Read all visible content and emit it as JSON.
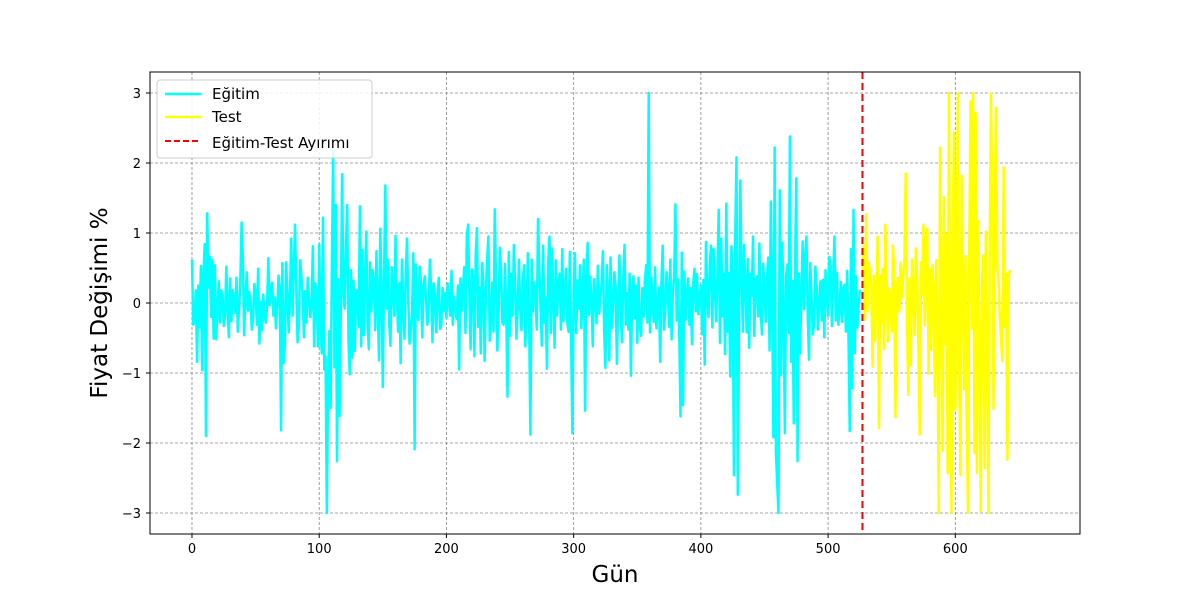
{
  "chart_data": {
    "type": "line",
    "xlabel": "Gün",
    "ylabel": "Fiyat Değişimi %",
    "xlim": [
      -33,
      698
    ],
    "ylim": [
      -3.3,
      3.3
    ],
    "xticks": [
      0,
      100,
      200,
      300,
      400,
      500,
      600
    ],
    "yticks": [
      -3,
      -2,
      -1,
      0,
      1,
      2,
      3
    ],
    "grid": true,
    "legend_position": "top-left",
    "split_day": 527,
    "series": [
      {
        "name": "Eğitim",
        "color": "#00ffff",
        "x_start": 0,
        "values": [
          0.62,
          -0.31,
          -0.27,
          0.18,
          -0.84,
          0.25,
          -0.34,
          0.53,
          -0.96,
          0.41,
          0.84,
          -1.9,
          1.28,
          0.22,
          0.66,
          -0.2,
          0.62,
          -0.51,
          0.54,
          -0.52,
          -0.14,
          0.31,
          -0.28,
          0.18,
          0.12,
          -0.33,
          -0.17,
          0.52,
          -0.09,
          -0.49,
          0.35,
          -0.26,
          0.18,
          0.08,
          -0.14,
          0.36,
          -0.41,
          -0.09,
          0.31,
          1.15,
          0.62,
          -0.46,
          0.05,
          0.44,
          -0.11,
          0.16,
          0.04,
          -0.38,
          -0.24,
          0.27,
          0.15,
          -0.31,
          0.49,
          -0.58,
          0.02,
          -0.39,
          0.12,
          -0.14,
          -0.28,
          -0.07,
          0.64,
          -0.03,
          0.21,
          0.29,
          -0.18,
          0.08,
          -0.36,
          -0.06,
          0.39,
          0.22,
          -1.82,
          0.57,
          -0.86,
          -0.61,
          0.58,
          0.15,
          -0.42,
          0.07,
          0.92,
          -0.18,
          0.47,
          1.12,
          0.21,
          -0.56,
          -0.33,
          0.61,
          0.39,
          0.12,
          -0.49,
          0.17,
          -0.28,
          0.36,
          0.06,
          -0.2,
          -0.05,
          0.81,
          -0.62,
          0.28,
          0.08,
          -0.62,
          0.84,
          -0.28,
          -0.72,
          1.22,
          -0.95,
          -0.76,
          -3.0,
          -1.08,
          -0.4,
          -1.5,
          0.65,
          2.18,
          -0.92,
          1.4,
          -2.26,
          0.34,
          -1.62,
          -0.12,
          1.84,
          0.15,
          -0.08,
          0.82,
          1.4,
          -0.53,
          -1.02,
          0.47,
          -0.78,
          0.32,
          -0.69,
          0.18,
          0.09,
          -0.34,
          1.38,
          -0.62,
          0.76,
          -0.46,
          0.34,
          1.02,
          -0.26,
          -0.66,
          0.58,
          -0.12,
          0.47,
          0.3,
          -0.39,
          0.74,
          -0.05,
          -0.82,
          1.06,
          0.21,
          -1.2,
          0.42,
          1.68,
          -0.08,
          0.62,
          -0.29,
          -0.61,
          0.51,
          0.22,
          -0.18,
          0.96,
          0.13,
          -0.41,
          0.29,
          -0.86,
          0.62,
          -0.03,
          -0.51,
          0.38,
          0.92,
          0.07,
          -0.58,
          -0.38,
          -0.13,
          0.71,
          -2.09,
          0.55,
          -0.16,
          -0.24,
          0.52,
          0.29,
          -0.49,
          0.24,
          0.38,
          0.05,
          -0.31,
          -0.14,
          0.62,
          0.19,
          -0.56,
          0.28,
          0.07,
          -0.42,
          0.13,
          0.36,
          -0.37,
          -0.32,
          0.21,
          -0.11,
          0.14,
          -0.22,
          0.28,
          0.03,
          -0.18,
          0.46,
          -0.31,
          0.09,
          -0.06,
          -0.23,
          0.25,
          -0.95,
          0.35,
          -0.11,
          0.21,
          0.51,
          -0.43,
          0.94,
          1.12,
          0.18,
          -0.66,
          0.48,
          0.37,
          -0.76,
          0.68,
          1.07,
          -0.34,
          0.22,
          -0.72,
          0.57,
          0.31,
          -0.83,
          0.16,
          0.62,
          0.95,
          -0.54,
          -0.22,
          0.29,
          -0.41,
          1.34,
          0.27,
          -0.68,
          -0.13,
          0.79,
          0.42,
          -0.28,
          -0.31,
          0.56,
          -0.09,
          -1.34,
          0.73,
          -0.47,
          0.41,
          -0.18,
          0.83,
          0.27,
          -0.51,
          -0.08,
          0.62,
          -0.09,
          -0.39,
          0.29,
          0.54,
          -0.62,
          -0.19,
          0.71,
          -0.26,
          -1.88,
          0.62,
          -0.12,
          0.29,
          0.16,
          -0.38,
          1.2,
          0.48,
          -0.06,
          -0.61,
          0.82,
          -0.28,
          0.08,
          -0.94,
          0.58,
          0.95,
          -0.43,
          0.78,
          0.09,
          -0.64,
          0.61,
          -0.18,
          0.24,
          0.42,
          -0.38,
          0.77,
          -0.26,
          0.12,
          0.49,
          -0.28,
          -0.41,
          0.73,
          -0.52,
          -1.86,
          0.18,
          0.71,
          -0.43,
          0.32,
          -0.08,
          0.54,
          -0.36,
          0.13,
          0.62,
          -1.54,
          0.31,
          0.86,
          -0.17,
          0.38,
          0.06,
          -0.62,
          0.34,
          0.12,
          -0.29,
          0.53,
          -0.15,
          0.08,
          0.28,
          0.74,
          -0.41,
          -0.93,
          0.54,
          0.19,
          -0.82,
          0.65,
          -0.36,
          -0.05,
          0.44,
          0.24,
          -0.87,
          0.09,
          0.68,
          -0.21,
          -0.56,
          0.37,
          0.83,
          -0.31,
          0.14,
          -0.38,
          0.42,
          -1.04,
          0.18,
          0.38,
          -0.22,
          0.25,
          -0.57,
          0.36,
          -0.34,
          -0.47,
          0.21,
          -0.2,
          0.32,
          0.54,
          -0.28,
          3.0,
          -0.42,
          0.36,
          0.05,
          -0.27,
          0.51,
          -0.36,
          -0.03,
          0.22,
          -0.84,
          0.31,
          0.82,
          -0.38,
          -0.12,
          0.44,
          0.19,
          -0.34,
          0.62,
          -0.52,
          0.17,
          0.35,
          1.41,
          -0.25,
          0.34,
          -0.43,
          -1.62,
          0.72,
          -1.46,
          0.45,
          -0.24,
          0.12,
          0.35,
          -0.31,
          0.21,
          -0.59,
          0.28,
          0.49,
          -0.12,
          0.41,
          -0.16,
          0.06,
          0.25,
          -0.45,
          0.33,
          -0.88,
          0.87,
          0.08,
          -0.2,
          0.53,
          0.82,
          -0.35,
          0.77,
          0.24,
          -0.26,
          0.38,
          1.33,
          -0.57,
          0.92,
          -0.19,
          0.42,
          -0.73,
          1.42,
          -0.41,
          0.43,
          -1.05,
          0.81,
          0.36,
          -2.46,
          0.94,
          2.08,
          -2.74,
          -0.3,
          1.75,
          0.42,
          -0.41,
          0.83,
          0.27,
          -0.42,
          0.63,
          -0.64,
          0.42,
          0.1,
          0.95,
          -0.47,
          0.34,
          0.38,
          -0.19,
          0.85,
          -0.1,
          -0.45,
          0.56,
          0.22,
          -0.27,
          0.38,
          0.65,
          -0.68,
          1.45,
          0.23,
          -1.92,
          2.22,
          -2.13,
          -2.57,
          -3.0,
          1.61,
          -1.03,
          0.86,
          -0.09,
          -1.86,
          0.39,
          0.55,
          -0.43,
          2.38,
          -0.84,
          0.31,
          -1.72,
          0.43,
          1.78,
          -2.26,
          0.42,
          -0.72,
          0.16,
          0.88,
          -0.09,
          0.67,
          0.95,
          -0.2,
          -0.81,
          0.57,
          0.08,
          -0.45,
          -0.29,
          0.52,
          0.23,
          -0.38,
          0.03,
          0.31,
          -0.25,
          0.33,
          -0.49,
          0.47,
          0.06,
          -0.18,
          0.66,
          0.52,
          -0.33,
          0.39,
          0.95,
          -0.25,
          0.43,
          -0.31,
          -0.11,
          0.3,
          -0.27,
          0.21,
          0.26,
          -0.41,
          0.46,
          -0.46,
          -1.83,
          0.77,
          -1.22,
          1.33,
          -0.72,
          0.38,
          -0.35,
          -0.05,
          0.19
        ]
      },
      {
        "name": "Test",
        "color": "#ffff00",
        "x_start": 527,
        "values": [
          0.35,
          0.82,
          -0.24,
          1.27,
          -0.12,
          0.58,
          0.43,
          0.26,
          -0.91,
          0.39,
          -0.54,
          0.18,
          0.95,
          -1.79,
          0.39,
          -0.27,
          0.49,
          -0.66,
          1.12,
          0.34,
          -0.55,
          0.21,
          0.07,
          -0.41,
          0.82,
          0.47,
          -1.63,
          0.24,
          0.36,
          -0.12,
          0.58,
          0.08,
          0.38,
          0.6,
          1.85,
          -0.13,
          -1.31,
          0.35,
          -0.89,
          0.62,
          0.18,
          -0.46,
          0.78,
          0.35,
          -0.62,
          -1.88,
          0.58,
          0.12,
          1.12,
          -0.32,
          0.29,
          1.06,
          -1.01,
          0.48,
          -0.67,
          0.54,
          0.19,
          -1.33,
          0.61,
          -0.51,
          -3.0,
          2.22,
          0.34,
          -2.11,
          1.51,
          -0.58,
          0.98,
          -2.43,
          3.0,
          -0.84,
          -3.0,
          1.18,
          2.43,
          -1.52,
          0.55,
          3.0,
          -0.92,
          -2.46,
          1.82,
          0.34,
          -1.23,
          0.67,
          -1.82,
          -3.0,
          0.92,
          2.88,
          -0.37,
          3.0,
          -2.14,
          2.71,
          -2.43,
          1.17,
          -0.73,
          -2.98,
          0.28,
          0.68,
          -2.36,
          1.02,
          -0.53,
          -3.0,
          0.63,
          3.0,
          1.62,
          -1.51,
          1.33,
          2.79,
          0.53,
          0.32,
          -0.21,
          -0.56,
          -0.83,
          1.94,
          -0.34,
          0.42,
          -2.24,
          0.38,
          0.47
        ]
      },
      {
        "name": "Eğitim-Test Ayırımı",
        "color": "#ff0000"
      }
    ]
  }
}
